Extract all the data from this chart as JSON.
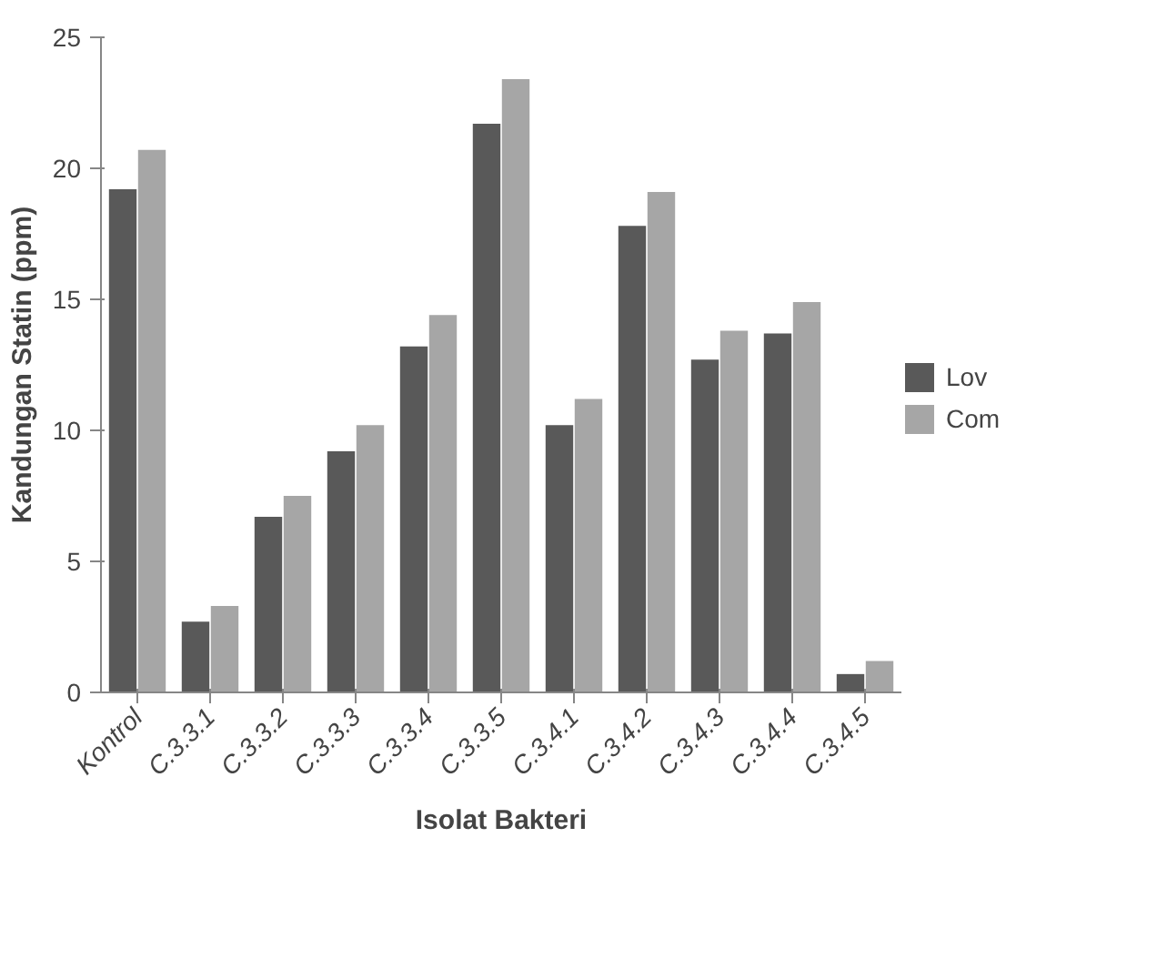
{
  "chart_data": {
    "type": "bar",
    "xlabel": "Isolat Bakteri",
    "ylabel": "Kandungan Statin (ppm)",
    "categories": [
      "Kontrol",
      "C.3.3.1",
      "C.3.3.2",
      "C.3.3.3",
      "C.3.3.4",
      "C.3.3.5",
      "C.3.4.1",
      "C.3.4.2",
      "C.3.4.3",
      "C.3.4.4",
      "C.3.4.5"
    ],
    "series": [
      {
        "name": "Lov",
        "color": "#595959",
        "values": [
          19.2,
          2.7,
          6.7,
          9.2,
          13.2,
          21.7,
          10.2,
          17.8,
          12.7,
          13.7,
          0.7
        ]
      },
      {
        "name": "Com",
        "color": "#a6a6a6",
        "values": [
          20.7,
          3.3,
          7.5,
          10.2,
          14.4,
          23.4,
          11.2,
          19.1,
          13.8,
          14.9,
          1.2
        ]
      }
    ],
    "ylim": [
      0,
      25
    ],
    "yticks": [
      0,
      5,
      10,
      15,
      20,
      25
    ],
    "grid": false,
    "legend": "right"
  }
}
